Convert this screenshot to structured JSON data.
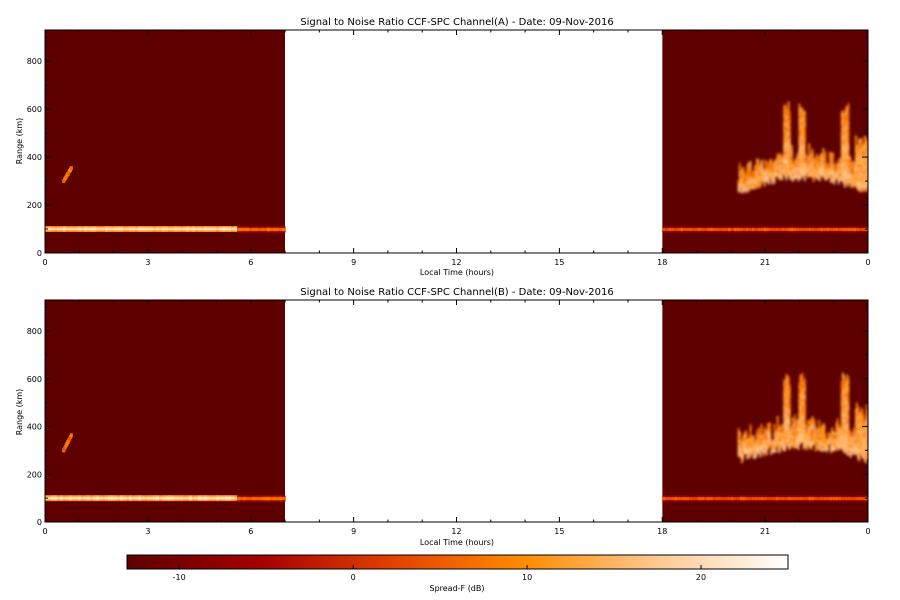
{
  "chart_data": [
    {
      "type": "heatmap",
      "title": "Signal to Noise Ratio CCF-SPC Channel(A) - Date: 09-Nov-2016",
      "xlabel": "Local Time (hours)",
      "ylabel": "Range (km)",
      "xticks": [
        "0",
        "3",
        "6",
        "9",
        "12",
        "15",
        "18",
        "21",
        "0"
      ],
      "yticks": [
        "0",
        "200",
        "400",
        "600",
        "800"
      ],
      "xlim": [
        0,
        24
      ],
      "ylim": [
        0,
        930
      ],
      "data_gap": [
        7,
        18
      ],
      "background_level_db": -13,
      "features": [
        {
          "kind": "band",
          "t_start": 0,
          "t_end": 5.6,
          "range_km": 100,
          "level_db": 22
        },
        {
          "kind": "band",
          "t_start": 5.6,
          "t_end": 7,
          "range_km": 98,
          "level_db": 8
        },
        {
          "kind": "band",
          "t_start": 18,
          "t_end": 24,
          "range_km": 98,
          "level_db": 6
        },
        {
          "kind": "patch",
          "t_start": 0.5,
          "t_end": 0.75,
          "range_low_km": 300,
          "range_high_km": 360,
          "level_db": 10
        },
        {
          "kind": "spreadF",
          "t_start": 20.2,
          "t_end": 24,
          "range_low_km": 240,
          "range_high_km": 620,
          "level_db": 20
        }
      ]
    },
    {
      "type": "heatmap",
      "title": "Signal to Noise Ratio CCF-SPC Channel(B) - Date: 09-Nov-2016",
      "xlabel": "Local Time (hours)",
      "ylabel": "Range (km)",
      "xticks": [
        "0",
        "3",
        "6",
        "9",
        "12",
        "15",
        "18",
        "21",
        "0"
      ],
      "yticks": [
        "0",
        "200",
        "400",
        "600",
        "800"
      ],
      "xlim": [
        0,
        24
      ],
      "ylim": [
        0,
        930
      ],
      "data_gap": [
        7,
        18
      ],
      "background_level_db": -13,
      "features": [
        {
          "kind": "band",
          "t_start": 0,
          "t_end": 5.6,
          "range_km": 100,
          "level_db": 22
        },
        {
          "kind": "band",
          "t_start": 5.6,
          "t_end": 7,
          "range_km": 98,
          "level_db": 8
        },
        {
          "kind": "band",
          "t_start": 18,
          "t_end": 24,
          "range_km": 98,
          "level_db": 6
        },
        {
          "kind": "patch",
          "t_start": 0.5,
          "t_end": 0.75,
          "range_low_km": 300,
          "range_high_km": 370,
          "level_db": 10
        },
        {
          "kind": "spreadF",
          "t_start": 20.2,
          "t_end": 24,
          "range_low_km": 240,
          "range_high_km": 620,
          "level_db": 20
        }
      ]
    }
  ],
  "colorbar": {
    "label": "Spread-F (dB)",
    "ticks": [
      "-10",
      "0",
      "10",
      "20"
    ],
    "tick_values": [
      -10,
      0,
      10,
      20
    ],
    "range_db": [
      -13,
      25
    ],
    "colors": [
      "#5e0000",
      "#a40000",
      "#e24000",
      "#ff8c00",
      "#ffc890",
      "#ffffff"
    ]
  }
}
